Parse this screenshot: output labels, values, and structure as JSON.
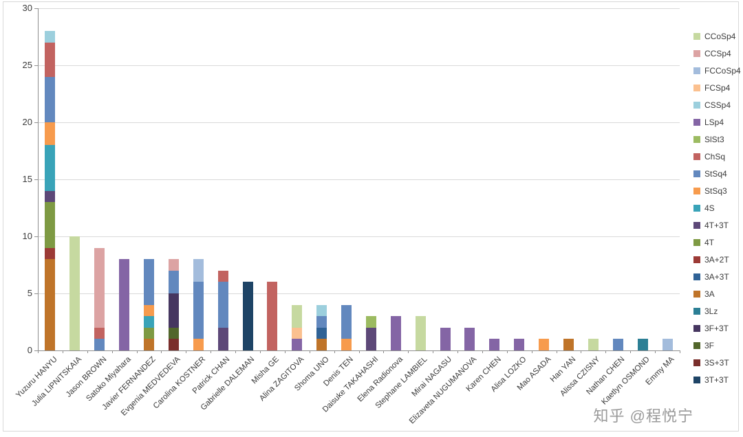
{
  "watermark": "知乎 @程悦宁",
  "chart_data": {
    "type": "bar",
    "stacked": true,
    "title": "",
    "xlabel": "",
    "ylabel": "",
    "ylim": [
      0,
      30
    ],
    "ytick_step": 5,
    "grid": true,
    "legend_position": "right",
    "legend": [
      {
        "label": "CCoSp4",
        "color": "#C6D9A0"
      },
      {
        "label": "CCSp4",
        "color": "#DCA3A3"
      },
      {
        "label": "FCCoSp4",
        "color": "#A3BCDC"
      },
      {
        "label": "FCSp4",
        "color": "#FBC08F"
      },
      {
        "label": "CSSp4",
        "color": "#9CCFDD"
      },
      {
        "label": "LSp4",
        "color": "#8465A5"
      },
      {
        "label": "SlSt3",
        "color": "#9CBB61"
      },
      {
        "label": "ChSq",
        "color": "#C26360"
      },
      {
        "label": "StSq4",
        "color": "#6288BE"
      },
      {
        "label": "StSq3",
        "color": "#F79B4D"
      },
      {
        "label": "4S",
        "color": "#39A3B8"
      },
      {
        "label": "4T+3T",
        "color": "#5D4878"
      },
      {
        "label": "4T",
        "color": "#7E9A43"
      },
      {
        "label": "3A+2T",
        "color": "#9C3A36"
      },
      {
        "label": "3A+3T",
        "color": "#2F6296"
      },
      {
        "label": "3A",
        "color": "#BF7429"
      },
      {
        "label": "3Lz",
        "color": "#2C7F95"
      },
      {
        "label": "3F+3T",
        "color": "#463660"
      },
      {
        "label": "3F",
        "color": "#52662B"
      },
      {
        "label": "3S+3T",
        "color": "#7A2E2B"
      },
      {
        "label": "3T+3T",
        "color": "#1E4466"
      }
    ],
    "bars": [
      {
        "category": "Yuzuru HANYU",
        "total": 28,
        "segments": [
          [
            "3A",
            8
          ],
          [
            "3A+2T",
            1
          ],
          [
            "4T",
            4
          ],
          [
            "4T+3T",
            1
          ],
          [
            "4S",
            4
          ],
          [
            "StSq3",
            2
          ],
          [
            "StSq4",
            4
          ],
          [
            "ChSq",
            3
          ],
          [
            "CSSp4",
            1
          ]
        ]
      },
      {
        "category": "Julia LIPNITSKAIA",
        "total": 10,
        "segments": [
          [
            "CCoSp4",
            10
          ]
        ]
      },
      {
        "category": "Jason BROWN",
        "total": 9,
        "segments": [
          [
            "StSq4",
            1
          ],
          [
            "ChSq",
            1
          ],
          [
            "CCSp4",
            7
          ]
        ]
      },
      {
        "category": "Satoko Miyahara",
        "total": 8,
        "segments": [
          [
            "LSp4",
            8
          ]
        ]
      },
      {
        "category": "Javier FERNANDEZ",
        "total": 8,
        "segments": [
          [
            "3A",
            1
          ],
          [
            "4T",
            1
          ],
          [
            "4S",
            1
          ],
          [
            "StSq3",
            1
          ],
          [
            "StSq4",
            4
          ]
        ]
      },
      {
        "category": "Evgenia MEDVEDEVA",
        "total": 8,
        "segments": [
          [
            "3S+3T",
            1
          ],
          [
            "3F",
            1
          ],
          [
            "3F+3T",
            3
          ],
          [
            "StSq4",
            2
          ],
          [
            "CCSp4",
            1
          ]
        ]
      },
      {
        "category": "Carolina KOSTNER",
        "total": 8,
        "segments": [
          [
            "StSq3",
            1
          ],
          [
            "StSq4",
            5
          ],
          [
            "FCCoSp4",
            2
          ]
        ]
      },
      {
        "category": "Patrick CHAN",
        "total": 7,
        "segments": [
          [
            "4T+3T",
            2
          ],
          [
            "StSq4",
            4
          ],
          [
            "ChSq",
            1
          ]
        ]
      },
      {
        "category": "Gabrielle DALEMAN",
        "total": 6,
        "segments": [
          [
            "3T+3T",
            6
          ]
        ]
      },
      {
        "category": "Misha GE",
        "total": 6,
        "segments": [
          [
            "ChSq",
            6
          ]
        ]
      },
      {
        "category": "Alina ZAGITOVA",
        "total": 4,
        "segments": [
          [
            "LSp4",
            1
          ],
          [
            "FCSp4",
            1
          ],
          [
            "CCoSp4",
            2
          ]
        ]
      },
      {
        "category": "Shoma UNO",
        "total": 4,
        "segments": [
          [
            "3A",
            1
          ],
          [
            "3A+3T",
            1
          ],
          [
            "StSq4",
            1
          ],
          [
            "CSSp4",
            1
          ]
        ]
      },
      {
        "category": "Denis TEN",
        "total": 4,
        "segments": [
          [
            "StSq3",
            1
          ],
          [
            "StSq4",
            3
          ]
        ]
      },
      {
        "category": "Daisuke TAKAHASHI",
        "total": 3,
        "segments": [
          [
            "4T+3T",
            2
          ],
          [
            "SlSt3",
            1
          ]
        ]
      },
      {
        "category": "Elena Radionova",
        "total": 3,
        "segments": [
          [
            "LSp4",
            3
          ]
        ]
      },
      {
        "category": "Stephane LAMBIEL",
        "total": 3,
        "segments": [
          [
            "CCoSp4",
            3
          ]
        ]
      },
      {
        "category": "Mirai NAGASU",
        "total": 2,
        "segments": [
          [
            "LSp4",
            2
          ]
        ]
      },
      {
        "category": "Elizaveta NUGUMANOVA",
        "total": 2,
        "segments": [
          [
            "LSp4",
            2
          ]
        ]
      },
      {
        "category": "Karen CHEN",
        "total": 1,
        "segments": [
          [
            "LSp4",
            1
          ]
        ]
      },
      {
        "category": "Alisa LOZKO",
        "total": 1,
        "segments": [
          [
            "LSp4",
            1
          ]
        ]
      },
      {
        "category": "Mao ASADA",
        "total": 1,
        "segments": [
          [
            "StSq3",
            1
          ]
        ]
      },
      {
        "category": "Han YAN",
        "total": 1,
        "segments": [
          [
            "3A",
            1
          ]
        ]
      },
      {
        "category": "Alissa CZISNY",
        "total": 1,
        "segments": [
          [
            "CCoSp4",
            1
          ]
        ]
      },
      {
        "category": "Nathan CHEN",
        "total": 1,
        "segments": [
          [
            "StSq4",
            1
          ]
        ]
      },
      {
        "category": "Kaetlyn OSMOND",
        "total": 1,
        "segments": [
          [
            "3Lz",
            1
          ]
        ]
      },
      {
        "category": "Emmy MA",
        "total": 1,
        "segments": [
          [
            "FCCoSp4",
            1
          ]
        ]
      }
    ]
  }
}
